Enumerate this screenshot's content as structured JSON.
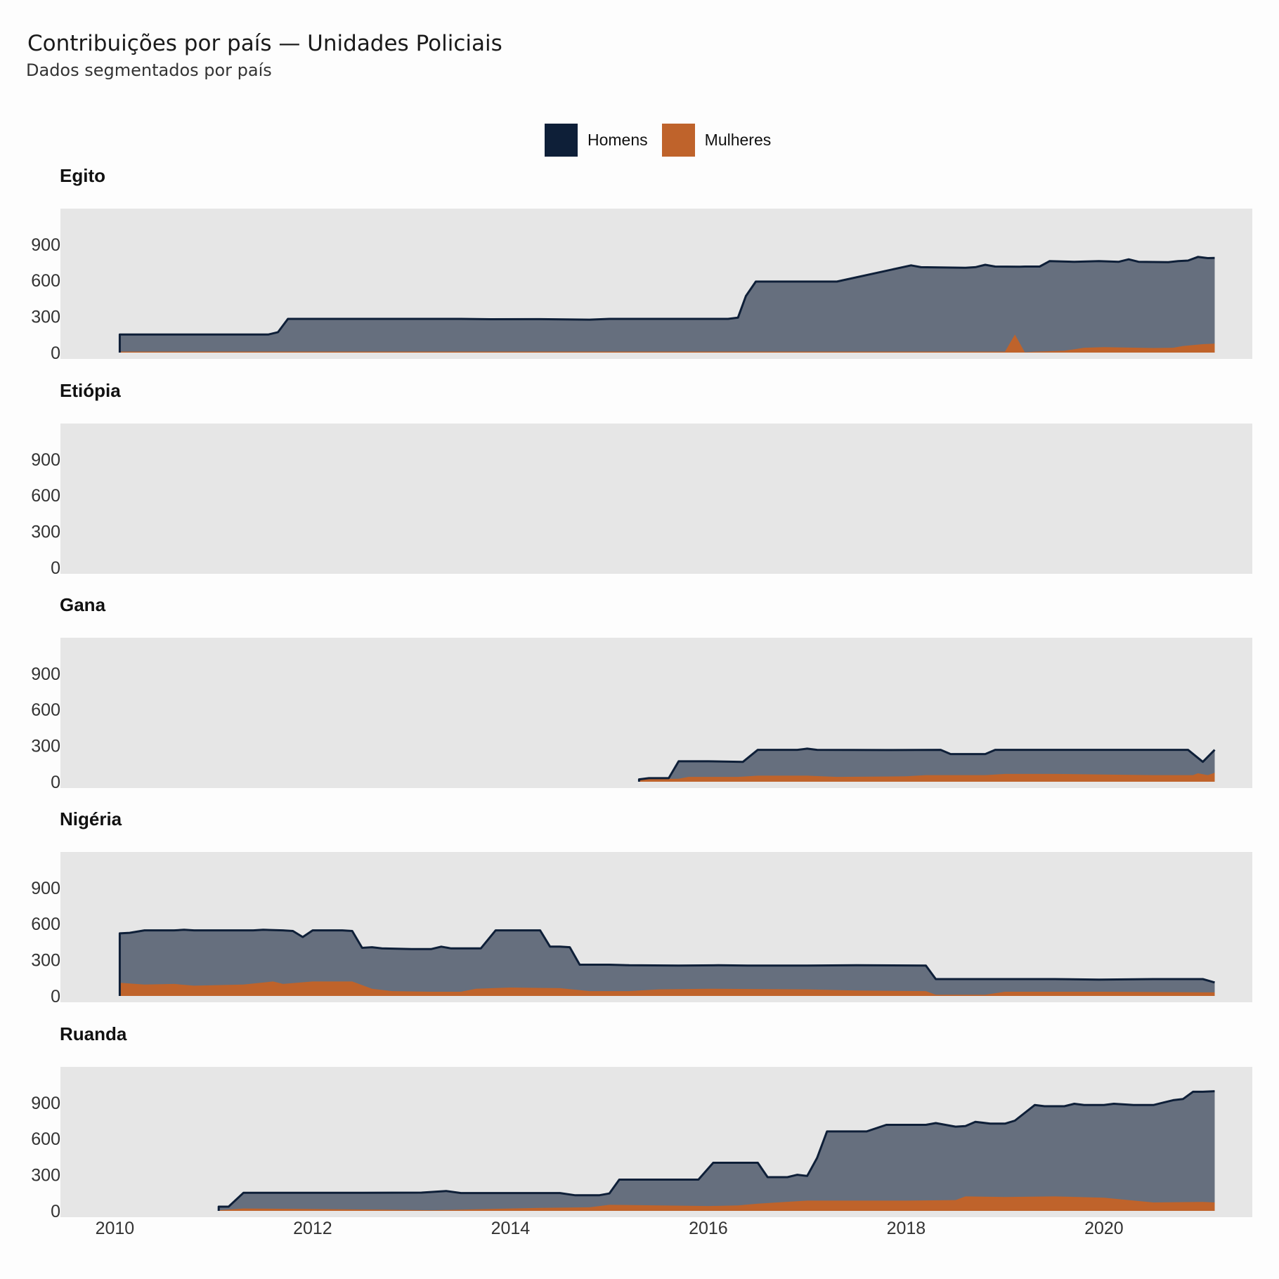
{
  "title": "Contribuições por país — Unidades Policiais",
  "subtitle": "Dados segmentados por país",
  "colors": {
    "men": "#0e1f38",
    "men_fill": "#666f7e",
    "women": "#bf632b",
    "panel_bg": "#e6e6e6"
  },
  "legend": [
    {
      "label": "Homens",
      "color": "#0e1f38"
    },
    {
      "label": "Mulheres",
      "color": "#bf632b"
    }
  ],
  "chart_data": {
    "type": "area",
    "stacked": true,
    "facet": "country",
    "x_unit": "year",
    "xlim": [
      2009.45,
      2021.5
    ],
    "ylim": [
      0,
      1200
    ],
    "x_ticks": [
      2010,
      2012,
      2014,
      2016,
      2018,
      2020
    ],
    "y_ticks": [
      0,
      300,
      600,
      900
    ],
    "grid": false,
    "legend_position": "top",
    "series_names": [
      "Homens",
      "Mulheres"
    ],
    "panels": [
      {
        "name": "Egito",
        "men": [
          [
            2010.05,
            150
          ],
          [
            2011.55,
            150
          ],
          [
            2011.65,
            170
          ],
          [
            2011.75,
            280
          ],
          [
            2012.2,
            280
          ],
          [
            2013.5,
            280
          ],
          [
            2013.8,
            277
          ],
          [
            2014.3,
            278
          ],
          [
            2014.8,
            274
          ],
          [
            2015.0,
            280
          ],
          [
            2016.2,
            280
          ],
          [
            2016.3,
            290
          ],
          [
            2016.38,
            470
          ],
          [
            2016.48,
            590
          ],
          [
            2016.8,
            590
          ],
          [
            2017.3,
            590
          ],
          [
            2018.05,
            725
          ],
          [
            2018.15,
            710
          ],
          [
            2018.6,
            705
          ],
          [
            2018.7,
            710
          ],
          [
            2018.8,
            730
          ],
          [
            2018.9,
            715
          ],
          [
            2019.15,
            714
          ],
          [
            2019.2,
            715
          ],
          [
            2019.35,
            715
          ],
          [
            2019.45,
            760
          ],
          [
            2019.7,
            755
          ],
          [
            2019.95,
            760
          ],
          [
            2020.15,
            755
          ],
          [
            2020.25,
            775
          ],
          [
            2020.35,
            755
          ],
          [
            2020.65,
            752
          ],
          [
            2020.75,
            760
          ],
          [
            2020.85,
            765
          ],
          [
            2020.95,
            795
          ],
          [
            2021.05,
            785
          ],
          [
            2021.12,
            787
          ]
        ],
        "women": [
          [
            2010.05,
            8
          ],
          [
            2019.0,
            8
          ],
          [
            2019.1,
            150
          ],
          [
            2019.2,
            3
          ],
          [
            2019.3,
            8
          ],
          [
            2019.6,
            15
          ],
          [
            2019.8,
            40
          ],
          [
            2020.0,
            45
          ],
          [
            2020.5,
            38
          ],
          [
            2020.7,
            40
          ],
          [
            2020.8,
            55
          ],
          [
            2021.0,
            70
          ],
          [
            2021.12,
            75
          ]
        ]
      },
      {
        "name": "Etiópia",
        "men": [],
        "women": []
      },
      {
        "name": "Gana",
        "men": [
          [
            2015.3,
            20
          ],
          [
            2015.4,
            30
          ],
          [
            2015.6,
            30
          ],
          [
            2015.7,
            170
          ],
          [
            2016.0,
            170
          ],
          [
            2016.35,
            165
          ],
          [
            2016.5,
            265
          ],
          [
            2016.9,
            265
          ],
          [
            2017.0,
            275
          ],
          [
            2017.1,
            265
          ],
          [
            2017.8,
            263
          ],
          [
            2018.35,
            265
          ],
          [
            2018.45,
            230
          ],
          [
            2018.8,
            230
          ],
          [
            2018.9,
            265
          ],
          [
            2019.5,
            265
          ],
          [
            2020.3,
            265
          ],
          [
            2020.6,
            265
          ],
          [
            2020.85,
            265
          ],
          [
            2021.0,
            165
          ],
          [
            2021.12,
            265
          ]
        ],
        "women": [
          [
            2015.3,
            20
          ],
          [
            2015.7,
            25
          ],
          [
            2015.8,
            40
          ],
          [
            2016.3,
            40
          ],
          [
            2016.5,
            50
          ],
          [
            2017.0,
            50
          ],
          [
            2017.3,
            40
          ],
          [
            2018.0,
            45
          ],
          [
            2018.2,
            55
          ],
          [
            2018.8,
            55
          ],
          [
            2019.0,
            65
          ],
          [
            2019.5,
            65
          ],
          [
            2020.0,
            60
          ],
          [
            2020.5,
            55
          ],
          [
            2020.9,
            55
          ],
          [
            2020.95,
            70
          ],
          [
            2021.05,
            55
          ],
          [
            2021.12,
            75
          ]
        ]
      },
      {
        "name": "Nigéria",
        "men": [
          [
            2010.05,
            520
          ],
          [
            2010.15,
            525
          ],
          [
            2010.3,
            545
          ],
          [
            2010.6,
            545
          ],
          [
            2010.7,
            550
          ],
          [
            2010.8,
            545
          ],
          [
            2011.4,
            545
          ],
          [
            2011.5,
            550
          ],
          [
            2011.7,
            545
          ],
          [
            2011.8,
            540
          ],
          [
            2011.9,
            490
          ],
          [
            2012.0,
            545
          ],
          [
            2012.3,
            545
          ],
          [
            2012.4,
            540
          ],
          [
            2012.5,
            400
          ],
          [
            2012.6,
            405
          ],
          [
            2012.7,
            395
          ],
          [
            2013.0,
            390
          ],
          [
            2013.2,
            390
          ],
          [
            2013.3,
            410
          ],
          [
            2013.4,
            395
          ],
          [
            2013.7,
            395
          ],
          [
            2013.85,
            545
          ],
          [
            2014.3,
            545
          ],
          [
            2014.4,
            410
          ],
          [
            2014.5,
            410
          ],
          [
            2014.6,
            405
          ],
          [
            2014.7,
            260
          ],
          [
            2015.0,
            260
          ],
          [
            2015.2,
            255
          ],
          [
            2015.7,
            253
          ],
          [
            2016.1,
            255
          ],
          [
            2016.4,
            252
          ],
          [
            2017.0,
            252
          ],
          [
            2017.5,
            255
          ],
          [
            2018.2,
            253
          ],
          [
            2018.3,
            140
          ],
          [
            2019.0,
            140
          ],
          [
            2019.5,
            140
          ],
          [
            2019.95,
            136
          ],
          [
            2020.5,
            140
          ],
          [
            2021.0,
            140
          ],
          [
            2021.12,
            112
          ]
        ],
        "women": [
          [
            2010.05,
            110
          ],
          [
            2010.3,
            95
          ],
          [
            2010.6,
            100
          ],
          [
            2010.8,
            85
          ],
          [
            2011.3,
            95
          ],
          [
            2011.6,
            120
          ],
          [
            2011.7,
            100
          ],
          [
            2012.0,
            120
          ],
          [
            2012.4,
            120
          ],
          [
            2012.6,
            60
          ],
          [
            2012.8,
            40
          ],
          [
            2013.2,
            35
          ],
          [
            2013.5,
            35
          ],
          [
            2013.65,
            60
          ],
          [
            2014.0,
            70
          ],
          [
            2014.5,
            65
          ],
          [
            2014.8,
            40
          ],
          [
            2015.2,
            40
          ],
          [
            2015.5,
            55
          ],
          [
            2016.0,
            60
          ],
          [
            2017.0,
            55
          ],
          [
            2017.5,
            45
          ],
          [
            2018.2,
            40
          ],
          [
            2018.3,
            10
          ],
          [
            2018.8,
            10
          ],
          [
            2019.0,
            35
          ],
          [
            2020.0,
            35
          ],
          [
            2021.0,
            30
          ],
          [
            2021.12,
            30
          ]
        ]
      },
      {
        "name": "Ruanda",
        "men": [
          [
            2011.05,
            35
          ],
          [
            2011.15,
            35
          ],
          [
            2011.3,
            150
          ],
          [
            2012.0,
            150
          ],
          [
            2012.5,
            150
          ],
          [
            2013.1,
            152
          ],
          [
            2013.35,
            165
          ],
          [
            2013.5,
            148
          ],
          [
            2014.5,
            148
          ],
          [
            2014.65,
            130
          ],
          [
            2014.9,
            130
          ],
          [
            2015.0,
            145
          ],
          [
            2015.1,
            260
          ],
          [
            2015.9,
            260
          ],
          [
            2016.05,
            400
          ],
          [
            2016.3,
            400
          ],
          [
            2016.5,
            400
          ],
          [
            2016.6,
            280
          ],
          [
            2016.8,
            280
          ],
          [
            2016.9,
            300
          ],
          [
            2017.0,
            290
          ],
          [
            2017.1,
            440
          ],
          [
            2017.2,
            660
          ],
          [
            2017.6,
            660
          ],
          [
            2017.8,
            715
          ],
          [
            2018.2,
            715
          ],
          [
            2018.3,
            730
          ],
          [
            2018.5,
            700
          ],
          [
            2018.6,
            705
          ],
          [
            2018.7,
            740
          ],
          [
            2018.85,
            725
          ],
          [
            2019.0,
            725
          ],
          [
            2019.1,
            750
          ],
          [
            2019.3,
            880
          ],
          [
            2019.4,
            870
          ],
          [
            2019.6,
            870
          ],
          [
            2019.7,
            890
          ],
          [
            2019.8,
            880
          ],
          [
            2020.0,
            880
          ],
          [
            2020.1,
            890
          ],
          [
            2020.3,
            880
          ],
          [
            2020.5,
            880
          ],
          [
            2020.6,
            900
          ],
          [
            2020.7,
            920
          ],
          [
            2020.8,
            930
          ],
          [
            2020.9,
            990
          ],
          [
            2021.0,
            990
          ],
          [
            2021.12,
            995
          ]
        ],
        "women": [
          [
            2011.05,
            5
          ],
          [
            2011.3,
            20
          ],
          [
            2012.0,
            15
          ],
          [
            2012.7,
            10
          ],
          [
            2013.2,
            5
          ],
          [
            2013.5,
            10
          ],
          [
            2014.0,
            20
          ],
          [
            2014.3,
            25
          ],
          [
            2014.8,
            30
          ],
          [
            2015.0,
            50
          ],
          [
            2016.0,
            40
          ],
          [
            2016.3,
            45
          ],
          [
            2016.5,
            60
          ],
          [
            2017.0,
            85
          ],
          [
            2017.5,
            85
          ],
          [
            2018.0,
            85
          ],
          [
            2018.5,
            90
          ],
          [
            2018.6,
            120
          ],
          [
            2019.0,
            115
          ],
          [
            2019.5,
            120
          ],
          [
            2020.0,
            110
          ],
          [
            2020.5,
            70
          ],
          [
            2021.0,
            75
          ],
          [
            2021.12,
            70
          ]
        ]
      }
    ]
  }
}
